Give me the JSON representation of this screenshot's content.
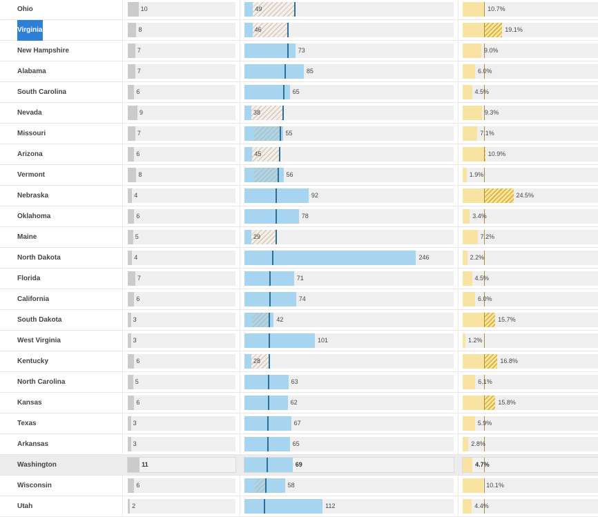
{
  "selected_state": "Virginia",
  "highlighted_state": "Washington",
  "scale": {
    "count_max": 100,
    "score_max": 300,
    "pct_max": 80
  },
  "colors": {
    "gray_bar": "#cbcbcb",
    "blue_bar": "#a7d4ef",
    "marker": "#2b6d94",
    "yellow_bar": "#f8e3a3",
    "hatch": "#d8b030",
    "selection": "#2f7fd6"
  },
  "rows": [
    {
      "state": "Ohio",
      "count": 10,
      "count_label": "10",
      "score": 49,
      "score_label": "49",
      "ref": 72,
      "pct": 10.7,
      "pct_label": "10.7%",
      "pct_ref": 6.5
    },
    {
      "state": "Virginia",
      "count": 8,
      "count_label": "8",
      "score": 46,
      "score_label": "46",
      "ref": 62,
      "pct": 19.1,
      "pct_label": "19.1%",
      "pct_ref": 6.5
    },
    {
      "state": "New Hampshire",
      "count": 7,
      "count_label": "7",
      "score": 73,
      "score_label": "73",
      "ref": 62,
      "pct": 9.0,
      "pct_label": "9.0%",
      "pct_ref": 6.5
    },
    {
      "state": "Alabama",
      "count": 7,
      "count_label": "7",
      "score": 85,
      "score_label": "85",
      "ref": 58,
      "pct": 6.0,
      "pct_label": "6.0%",
      "pct_ref": 6.5
    },
    {
      "state": "South Carolina",
      "count": 6,
      "count_label": "6",
      "score": 65,
      "score_label": "65",
      "ref": 56,
      "pct": 4.5,
      "pct_label": "4.5%",
      "pct_ref": 6.5
    },
    {
      "state": "Nevada",
      "count": 9,
      "count_label": "9",
      "score": 38,
      "score_label": "38",
      "ref": 55,
      "pct": 9.3,
      "pct_label": "9.3%",
      "pct_ref": 6.5
    },
    {
      "state": "Missouri",
      "count": 7,
      "count_label": "7",
      "score": 55,
      "score_label": "55",
      "ref": 51,
      "pct": 7.1,
      "pct_label": "7.1%",
      "pct_ref": 6.5
    },
    {
      "state": "Arizona",
      "count": 6,
      "count_label": "6",
      "score": 45,
      "score_label": "45",
      "ref": 50,
      "pct": 10.9,
      "pct_label": "10.9%",
      "pct_ref": 6.5
    },
    {
      "state": "Vermont",
      "count": 8,
      "count_label": "8",
      "score": 56,
      "score_label": "56",
      "ref": 48,
      "pct": 1.9,
      "pct_label": "1.9%",
      "pct_ref": 6.5
    },
    {
      "state": "Nebraska",
      "count": 4,
      "count_label": "4",
      "score": 92,
      "score_label": "92",
      "ref": 45,
      "pct": 24.5,
      "pct_label": "24.5%",
      "pct_ref": 6.5
    },
    {
      "state": "Oklahoma",
      "count": 6,
      "count_label": "6",
      "score": 78,
      "score_label": "78",
      "ref": 45,
      "pct": 3.4,
      "pct_label": "3.4%",
      "pct_ref": 6.5
    },
    {
      "state": "Maine",
      "count": 5,
      "count_label": "5",
      "score": 29,
      "score_label": "29",
      "ref": 45,
      "pct": 7.2,
      "pct_label": "7.2%",
      "pct_ref": 6.5
    },
    {
      "state": "North Dakota",
      "count": 4,
      "count_label": "4",
      "score": 246,
      "score_label": "246",
      "ref": 40,
      "pct": 2.2,
      "pct_label": "2.2%",
      "pct_ref": 6.5
    },
    {
      "state": "Florida",
      "count": 7,
      "count_label": "7",
      "score": 71,
      "score_label": "71",
      "ref": 36,
      "pct": 4.5,
      "pct_label": "4.5%",
      "pct_ref": 6.5
    },
    {
      "state": "California",
      "count": 6,
      "count_label": "6",
      "score": 74,
      "score_label": "74",
      "ref": 36,
      "pct": 6.0,
      "pct_label": "6.0%",
      "pct_ref": 6.5
    },
    {
      "state": "South Dakota",
      "count": 3,
      "count_label": "3",
      "score": 42,
      "score_label": "42",
      "ref": 35,
      "pct": 15.7,
      "pct_label": "15.7%",
      "pct_ref": 6.5
    },
    {
      "state": "West Virginia",
      "count": 3,
      "count_label": "3",
      "score": 101,
      "score_label": "101",
      "ref": 35,
      "pct": 1.2,
      "pct_label": "1.2%",
      "pct_ref": 6.5
    },
    {
      "state": "Kentucky",
      "count": 6,
      "count_label": "6",
      "score": 28,
      "score_label": "28",
      "ref": 35,
      "pct": 16.8,
      "pct_label": "16.8%",
      "pct_ref": 6.5
    },
    {
      "state": "North Carolina",
      "count": 5,
      "count_label": "5",
      "score": 63,
      "score_label": "63",
      "ref": 34,
      "pct": 6.1,
      "pct_label": "6.1%",
      "pct_ref": 6.5
    },
    {
      "state": "Kansas",
      "count": 6,
      "count_label": "6",
      "score": 62,
      "score_label": "62",
      "ref": 34,
      "pct": 15.8,
      "pct_label": "15.8%",
      "pct_ref": 6.5
    },
    {
      "state": "Texas",
      "count": 3,
      "count_label": "3",
      "score": 67,
      "score_label": "67",
      "ref": 33,
      "pct": 5.9,
      "pct_label": "5.9%",
      "pct_ref": 6.5
    },
    {
      "state": "Arkansas",
      "count": 3,
      "count_label": "3",
      "score": 65,
      "score_label": "65",
      "ref": 33,
      "pct": 2.8,
      "pct_label": "2.8%",
      "pct_ref": 6.5
    },
    {
      "state": "Washington",
      "count": 11,
      "count_label": "11",
      "score": 69,
      "score_label": "69",
      "ref": 32,
      "pct": 4.7,
      "pct_label": "4.7%",
      "pct_ref": 6.5
    },
    {
      "state": "Wisconsin",
      "count": 6,
      "count_label": "6",
      "score": 58,
      "score_label": "58",
      "ref": 30,
      "pct": 10.1,
      "pct_label": "10.1%",
      "pct_ref": 6.5
    },
    {
      "state": "Utah",
      "count": 2,
      "count_label": "2",
      "score": 112,
      "score_label": "112",
      "ref": 28,
      "pct": 4.4,
      "pct_label": "4.4%",
      "pct_ref": 6.5
    }
  ]
}
